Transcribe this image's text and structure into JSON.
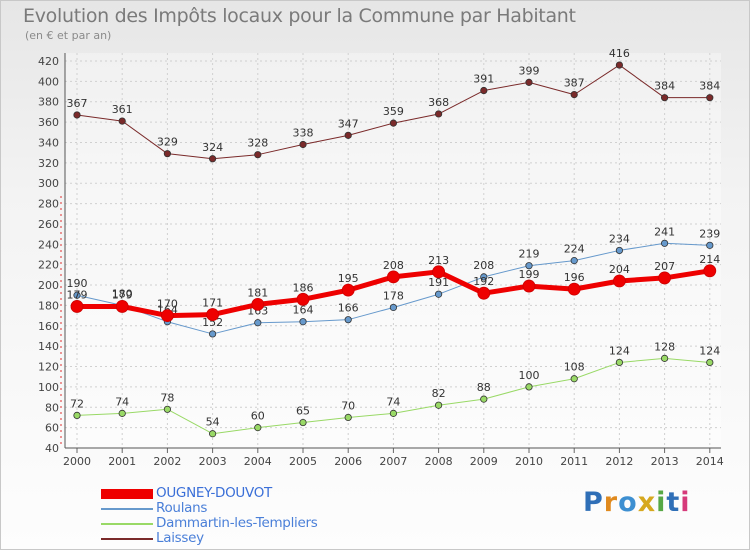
{
  "title": "Evolution des Impôts locaux pour la Commune par Habitant",
  "subtitle": "(en € et par an)",
  "brand": {
    "text": "Proxiti",
    "letters": [
      "P",
      "r",
      "o",
      "x",
      "i",
      "t",
      "i"
    ],
    "colors": [
      "#2f6fb7",
      "#e08a1e",
      "#3d8fd1",
      "#d6a81e",
      "#57a845",
      "#2f6fb7",
      "#d63a7a"
    ]
  },
  "chart_data": {
    "type": "line",
    "title": "Evolution des Impôts locaux pour la Commune par Habitant",
    "subtitle": "(en € et par an)",
    "x": [
      "2000",
      "2001",
      "2002",
      "2003",
      "2004",
      "2005",
      "2006",
      "2007",
      "2008",
      "2009",
      "2010",
      "2011",
      "2012",
      "2013",
      "2014"
    ],
    "ylim": [
      40,
      420
    ],
    "yticks": [
      40,
      60,
      80,
      100,
      120,
      140,
      160,
      180,
      200,
      220,
      240,
      260,
      280,
      300,
      320,
      340,
      360,
      380,
      400,
      420
    ],
    "grid": true,
    "legend_position": "bottom-left",
    "series": [
      {
        "name": "OUGNEY-DOUVOT",
        "color": "#ee0000",
        "width": 5,
        "labels": [
          "179",
          "179",
          "170",
          "171",
          "181",
          "186",
          "195",
          "208",
          "213",
          "192",
          "199",
          "196",
          "204",
          "207",
          "214"
        ],
        "values": [
          179,
          179,
          170,
          171,
          181,
          186,
          195,
          208,
          213,
          192,
          199,
          196,
          204,
          207,
          214
        ]
      },
      {
        "name": "Roulans",
        "color": "#6699cc",
        "width": 1,
        "labels": [
          "190",
          "180",
          "164",
          "152",
          "163",
          "164",
          "166",
          "178",
          "191",
          "208",
          "219",
          "224",
          "234",
          "241",
          "239"
        ],
        "values": [
          190,
          180,
          164,
          152,
          163,
          164,
          166,
          178,
          191,
          208,
          219,
          224,
          234,
          241,
          239
        ]
      },
      {
        "name": "Dammartin-les-Templiers",
        "color": "#99d966",
        "width": 1,
        "labels": [
          "72",
          "74",
          "78",
          "54",
          "60",
          "65",
          "70",
          "74",
          "82",
          "88",
          "100",
          "108",
          "124",
          "128",
          "124"
        ],
        "values": [
          72,
          74,
          78,
          54,
          60,
          65,
          70,
          74,
          82,
          88,
          100,
          108,
          124,
          128,
          124
        ]
      },
      {
        "name": "Laissey",
        "color": "#7a2a2a",
        "width": 1,
        "labels": [
          "367",
          "361",
          "329",
          "324",
          "328",
          "338",
          "347",
          "359",
          "368",
          "391",
          "399",
          "387",
          "416",
          "384",
          "384"
        ],
        "values": [
          367,
          361,
          329,
          324,
          328,
          338,
          347,
          359,
          368,
          391,
          399,
          387,
          416,
          384,
          384
        ]
      }
    ]
  }
}
